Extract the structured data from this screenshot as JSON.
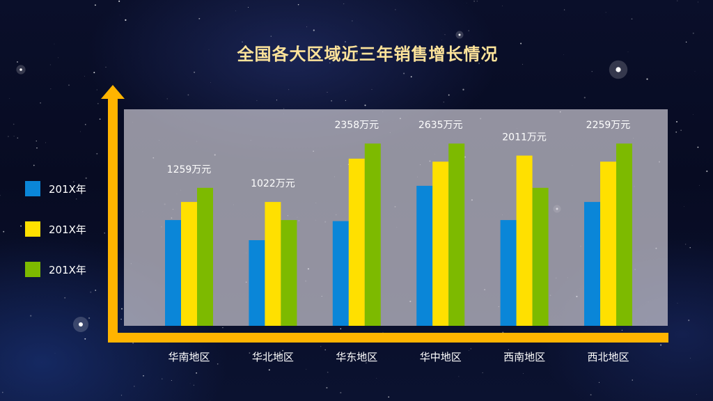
{
  "chart_data": {
    "type": "bar",
    "title": "全国各大区域近三年销售增长情况",
    "categories": [
      "华南地区",
      "华北地区",
      "华东地区",
      "华中地区",
      "西南地区",
      "西北地区"
    ],
    "series": [
      {
        "name": "201X年",
        "color": "#0a86d8",
        "values": [
          1050,
          850,
          1040,
          1390,
          1050,
          1230
        ]
      },
      {
        "name": "201X年",
        "color": "#ffe000",
        "values": [
          1230,
          1230,
          1660,
          1630,
          1690,
          1630
        ]
      },
      {
        "name": "201X年",
        "color": "#7dba00",
        "values": [
          1370,
          1050,
          1810,
          1810,
          1370,
          1810
        ]
      }
    ],
    "data_labels": [
      "1259万元",
      "1022万元",
      "2358万元",
      "2635万元",
      "2011万元",
      "2259万元"
    ],
    "ylim": [
      0,
      2150
    ],
    "xlabel": "",
    "ylabel": "",
    "grid": false,
    "legend_position": "left"
  },
  "colors": {
    "title": "#fde39a",
    "axis": "#ffb400",
    "plot_panel": "#c9c6d0",
    "text": "#ffffff"
  }
}
